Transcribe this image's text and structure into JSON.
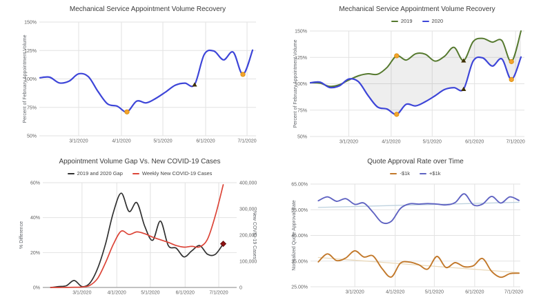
{
  "page": {
    "background": "#ffffff",
    "grid_color": "#e2e2e2",
    "tick_text_color": "#616161",
    "title_color": "#3a3a3a"
  },
  "chart_data": [
    {
      "id": "mechanical-volume-recovery-2020",
      "type": "line",
      "title": "Mechanical Service Appointment Volume Recovery",
      "x_axis": {
        "tick_labels": [
          "3/1/2020",
          "4/1/2020",
          "5/1/2020",
          "6/1/2020",
          "7/1/2020"
        ],
        "tick_days": [
          28,
          59,
          89,
          120,
          150
        ]
      },
      "y_axis": {
        "label": "Percent of February Appointment Volume",
        "tick_labels": [
          "150%",
          "125%",
          "100%",
          "75%",
          "50%"
        ],
        "tick_values": [
          150,
          125,
          100,
          75,
          50
        ],
        "range": [
          50,
          150
        ]
      },
      "x_dates": [
        "2/2/2020",
        "2/9/2020",
        "2/16/2020",
        "2/23/2020",
        "3/1/2020",
        "3/8/2020",
        "3/15/2020",
        "3/22/2020",
        "3/29/2020",
        "4/5/2020",
        "4/12/2020",
        "4/19/2020",
        "4/26/2020",
        "5/3/2020",
        "5/10/2020",
        "5/17/2020",
        "5/24/2020",
        "5/31/2020",
        "6/7/2020",
        "6/14/2020",
        "6/21/2020",
        "6/28/2020",
        "7/5/2020"
      ],
      "x_days": [
        0,
        7,
        14,
        21,
        28,
        35,
        42,
        49,
        56,
        63,
        70,
        77,
        84,
        91,
        98,
        105,
        112,
        119,
        126,
        133,
        140,
        147,
        154
      ],
      "series": [
        {
          "name": "2020",
          "color": "#3d45d8",
          "width": 2.2,
          "values": [
            101,
            101.5,
            96.5,
            98,
            104.5,
            102,
            89,
            78,
            76,
            71,
            80.5,
            79,
            83,
            88.5,
            94.5,
            96.3,
            95,
            121.5,
            124.5,
            116.8,
            123.5,
            104,
            125.3
          ]
        }
      ],
      "markers": [
        {
          "series": "2020",
          "day": 63,
          "value": 71,
          "shape": "circle",
          "color": "#f2a32f"
        },
        {
          "series": "2020",
          "day": 112,
          "value": 95,
          "shape": "triangle",
          "color": "#3e2f00"
        },
        {
          "series": "2020",
          "day": 147,
          "value": 104,
          "shape": "circle",
          "color": "#f2a32f"
        }
      ]
    },
    {
      "id": "mechanical-volume-recovery-2019-vs-2020",
      "type": "line",
      "title": "Mechanical Service Appointment Volume Recovery",
      "legend": {
        "items": [
          {
            "label": "2019",
            "color": "#55792e"
          },
          {
            "label": "2020",
            "color": "#3d45d8"
          }
        ]
      },
      "x_axis": {
        "tick_labels": [
          "3/1/2020",
          "4/1/2020",
          "5/1/2020",
          "6/1/2020",
          "7/1/2020"
        ],
        "tick_days": [
          28,
          59,
          89,
          120,
          150
        ]
      },
      "y_axis": {
        "label": "Percent of February Appointment Volume",
        "tick_labels": [
          "150%",
          "125%",
          "100%",
          "75%",
          "50%"
        ],
        "tick_values": [
          150,
          125,
          100,
          75,
          50
        ],
        "range": [
          50,
          150
        ]
      },
      "x_dates": [
        "2/2/2020",
        "2/9/2020",
        "2/16/2020",
        "2/23/2020",
        "3/1/2020",
        "3/8/2020",
        "3/15/2020",
        "3/22/2020",
        "3/29/2020",
        "4/5/2020",
        "4/12/2020",
        "4/19/2020",
        "4/26/2020",
        "5/3/2020",
        "5/10/2020",
        "5/17/2020",
        "5/24/2020",
        "5/31/2020",
        "6/7/2020",
        "6/14/2020",
        "6/21/2020",
        "6/28/2020",
        "7/5/2020"
      ],
      "x_days": [
        0,
        7,
        14,
        21,
        28,
        35,
        42,
        49,
        56,
        63,
        70,
        77,
        84,
        91,
        98,
        105,
        112,
        119,
        126,
        133,
        140,
        147,
        154
      ],
      "area_between": [
        "2019",
        "2020"
      ],
      "area_color": "rgba(120,120,120,0.13)",
      "series": [
        {
          "name": "2019",
          "color": "#55792e",
          "width": 2,
          "values": [
            101,
            100.5,
            97.5,
            99,
            103.5,
            107.5,
            109.5,
            109,
            115.5,
            126.5,
            122.5,
            128.5,
            128,
            121.5,
            126,
            134.5,
            122,
            140,
            143,
            139.5,
            141,
            121,
            150
          ]
        },
        {
          "name": "2020",
          "color": "#3d45d8",
          "width": 2.2,
          "values": [
            101,
            101.5,
            96.5,
            98,
            104.5,
            102,
            89,
            78,
            76,
            71,
            80.5,
            79,
            83,
            88.5,
            94.5,
            96.3,
            95,
            121.5,
            124.5,
            116.8,
            123.5,
            104,
            125.3
          ]
        }
      ],
      "markers": [
        {
          "series": "2019",
          "day": 63,
          "value": 126.5,
          "shape": "circle",
          "color": "#f2a32f"
        },
        {
          "series": "2019",
          "day": 112,
          "value": 122,
          "shape": "triangle",
          "color": "#3e2f00"
        },
        {
          "series": "2019",
          "day": 147,
          "value": 121,
          "shape": "circle",
          "color": "#f2a32f"
        },
        {
          "series": "2020",
          "day": 63,
          "value": 71,
          "shape": "circle",
          "color": "#f2a32f"
        },
        {
          "series": "2020",
          "day": 112,
          "value": 95,
          "shape": "triangle",
          "color": "#3e2f00"
        },
        {
          "series": "2020",
          "day": 147,
          "value": 104,
          "shape": "circle",
          "color": "#f2a32f"
        }
      ]
    },
    {
      "id": "volume-gap-vs-covid-cases",
      "type": "line",
      "title": "Appointment Volume Gap Vs. New COVID-19 Cases",
      "legend": {
        "items": [
          {
            "label": "2019 and 2020 Gap",
            "color": "#303030"
          },
          {
            "label": "Weekly New COVID-19 Cases",
            "color": "#dc4437"
          }
        ]
      },
      "x_axis": {
        "tick_labels": [
          "3/1/2020",
          "4/1/2020",
          "5/1/2020",
          "6/1/2020",
          "7/1/2020"
        ],
        "tick_days": [
          28,
          59,
          89,
          120,
          150
        ],
        "baseline": true
      },
      "y_axis": {
        "label": "% Difference",
        "tick_labels": [
          "60%",
          "40%",
          "20%",
          "0%"
        ],
        "tick_values": [
          60,
          40,
          20,
          0
        ],
        "range": [
          0,
          60
        ]
      },
      "y2_axis": {
        "label": "New COVID-19 Cases",
        "tick_labels": [
          "400,000",
          "300,000",
          "200,000",
          "100,000",
          "0"
        ],
        "tick_values": [
          400000,
          300000,
          200000,
          100000,
          0
        ],
        "range": [
          0,
          400000
        ]
      },
      "x_dates": [
        "2/2/2020",
        "2/9/2020",
        "2/16/2020",
        "2/23/2020",
        "3/1/2020",
        "3/8/2020",
        "3/15/2020",
        "3/22/2020",
        "3/29/2020",
        "4/5/2020",
        "4/12/2020",
        "4/19/2020",
        "4/26/2020",
        "5/3/2020",
        "5/10/2020",
        "5/17/2020",
        "5/24/2020",
        "5/31/2020",
        "6/7/2020",
        "6/14/2020",
        "6/21/2020",
        "6/28/2020",
        "7/5/2020"
      ],
      "x_days": [
        0,
        7,
        14,
        21,
        28,
        35,
        42,
        49,
        56,
        63,
        70,
        77,
        84,
        91,
        98,
        105,
        112,
        119,
        126,
        133,
        140,
        147,
        154
      ],
      "series": [
        {
          "name": "2019 and 2020 Gap",
          "color": "#303030",
          "width": 1.7,
          "values": [
            0,
            0.5,
            1,
            4,
            0.5,
            2.5,
            11,
            25,
            43,
            54,
            43.5,
            48.5,
            35,
            27,
            38,
            24,
            22.5,
            17.5,
            21,
            24,
            19,
            19,
            25
          ]
        },
        {
          "name": "Weekly New COVID-19 Cases",
          "color": "#dc4437",
          "width": 1.7,
          "axis": "right",
          "values": [
            0,
            0,
            300,
            800,
            1500,
            8000,
            35000,
            95000,
            165000,
            215000,
            202000,
            212000,
            205000,
            192000,
            182000,
            172000,
            160000,
            154000,
            157000,
            155000,
            185000,
            275000,
            392000
          ]
        }
      ],
      "markers": [
        {
          "series": "2019 and 2020 Gap",
          "day": 154,
          "value": 25,
          "shape": "diamond",
          "color": "#8f1212"
        }
      ]
    },
    {
      "id": "quote-approval-rate-over-time",
      "type": "line",
      "title": "Quote Approval Rate over Time",
      "legend": {
        "items": [
          {
            "label": "-$1k",
            "color": "#c2782a"
          },
          {
            "label": "+$1k",
            "color": "#5f63c2"
          }
        ]
      },
      "x_axis": {
        "tick_labels": [
          "3/1/2020",
          "4/1/2020",
          "5/1/2020",
          "6/1/2020",
          "7/1/2020"
        ],
        "tick_days": [
          28,
          59,
          89,
          120,
          150
        ]
      },
      "y_axis": {
        "label": "Normalized Quote Approval Rate",
        "tick_labels": [
          "65.00%",
          "55.00%",
          "45.00%",
          "35.00%",
          "25.00%"
        ],
        "tick_values": [
          65,
          55,
          45,
          35,
          25
        ],
        "range": [
          25,
          65
        ]
      },
      "x_dates": [
        "2/2/2020",
        "2/9/2020",
        "2/16/2020",
        "2/23/2020",
        "3/1/2020",
        "3/8/2020",
        "3/15/2020",
        "3/22/2020",
        "3/29/2020",
        "4/5/2020",
        "4/12/2020",
        "4/19/2020",
        "4/26/2020",
        "5/3/2020",
        "5/10/2020",
        "5/17/2020",
        "5/24/2020",
        "5/31/2020",
        "6/7/2020",
        "6/14/2020",
        "6/21/2020",
        "6/28/2020",
        "7/5/2020"
      ],
      "x_days": [
        0,
        7,
        14,
        21,
        28,
        35,
        42,
        49,
        56,
        63,
        70,
        77,
        84,
        91,
        98,
        105,
        112,
        119,
        126,
        133,
        140,
        147,
        154
      ],
      "series": [
        {
          "name": "-$1k trendline",
          "trend": true,
          "color": "#ead9bb",
          "width": 1.3,
          "days": [
            0,
            154
          ],
          "values": [
            36.4,
            30.5
          ]
        },
        {
          "name": "+$1k trendline",
          "trend": true,
          "color": "#bed2df",
          "width": 1.3,
          "days": [
            0,
            154
          ],
          "values": [
            55.9,
            57.9
          ]
        },
        {
          "name": "-$1k",
          "color": "#c2782a",
          "width": 1.9,
          "values": [
            34.7,
            37.8,
            35.2,
            36.2,
            39,
            36.6,
            37,
            32,
            28.8,
            34.2,
            34.6,
            33.6,
            31.9,
            36.8,
            32.5,
            34.4,
            32.8,
            33.2,
            36,
            31,
            28.7,
            30.1,
            30.3
          ]
        },
        {
          "name": "+$1k",
          "color": "#5f63c2",
          "width": 1.9,
          "values": [
            58.5,
            60,
            58.3,
            59.3,
            57.1,
            57.6,
            54,
            50,
            50.5,
            55.5,
            57.3,
            57.2,
            57.4,
            57.2,
            56.9,
            57.8,
            61.2,
            56.9,
            57.2,
            60.2,
            57.6,
            60,
            58.6
          ]
        }
      ],
      "markers": []
    }
  ]
}
